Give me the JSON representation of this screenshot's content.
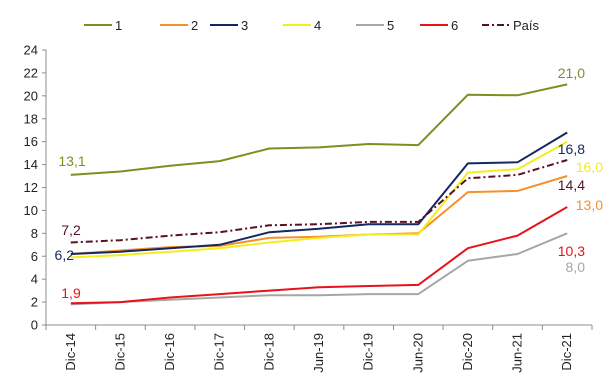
{
  "chart_data": {
    "type": "line",
    "categories": [
      "Dic-14",
      "Dic-15",
      "Dic-16",
      "Dic-17",
      "Dic-18",
      "Jun-19",
      "Dic-19",
      "Jun-20",
      "Dic-20",
      "Jun-21",
      "Dic-21"
    ],
    "ylim": [
      0,
      24
    ],
    "yticks": [
      "0",
      "2",
      "4",
      "6",
      "8",
      "10",
      "12",
      "14",
      "16",
      "18",
      "20",
      "22",
      "24"
    ],
    "grid": false,
    "legend_position": "top",
    "series": [
      {
        "name": "1",
        "color": "#7f8f1f",
        "dash": "solid",
        "values": [
          13.1,
          13.4,
          13.9,
          14.3,
          15.4,
          15.5,
          15.8,
          15.7,
          20.1,
          20.05,
          21.0
        ],
        "labels": [
          {
            "index": 0,
            "text": "13,1"
          },
          {
            "index": 10,
            "text": "21,0"
          }
        ]
      },
      {
        "name": "2",
        "color": "#f5902b",
        "dash": "solid",
        "values": [
          6.2,
          6.5,
          6.8,
          6.9,
          7.6,
          7.7,
          7.9,
          8.0,
          11.6,
          11.7,
          13.0
        ],
        "labels": [
          {
            "index": 10,
            "text": "13,0"
          }
        ]
      },
      {
        "name": "3",
        "color": "#14285f",
        "dash": "solid",
        "values": [
          6.2,
          6.4,
          6.7,
          7.0,
          8.1,
          8.4,
          8.8,
          8.8,
          14.1,
          14.2,
          16.8
        ],
        "labels": [
          {
            "index": 0,
            "text": "6,2"
          },
          {
            "index": 10,
            "text": "16,8"
          }
        ]
      },
      {
        "name": "4",
        "color": "#f2ee1c",
        "dash": "solid",
        "values": [
          5.9,
          6.1,
          6.4,
          6.7,
          7.2,
          7.6,
          7.9,
          7.9,
          13.3,
          13.6,
          16.0
        ],
        "labels": [
          {
            "index": 10,
            "text": "16,0"
          }
        ]
      },
      {
        "name": "5",
        "color": "#a6a6a6",
        "dash": "solid",
        "values": [
          1.8,
          2.0,
          2.2,
          2.4,
          2.6,
          2.6,
          2.7,
          2.7,
          5.6,
          6.2,
          8.0
        ],
        "labels": [
          {
            "index": 10,
            "text": "8,0"
          }
        ]
      },
      {
        "name": "6",
        "color": "#e8131a",
        "dash": "solid",
        "values": [
          1.9,
          2.0,
          2.4,
          2.7,
          3.0,
          3.3,
          3.4,
          3.5,
          6.7,
          7.8,
          10.3
        ],
        "labels": [
          {
            "index": 0,
            "text": "1,9"
          },
          {
            "index": 10,
            "text": "10,3"
          }
        ]
      },
      {
        "name": "País",
        "color": "#5a1028",
        "dash": "dashdot",
        "values": [
          7.2,
          7.4,
          7.8,
          8.1,
          8.7,
          8.8,
          9.0,
          9.0,
          12.8,
          13.1,
          14.4
        ],
        "labels": [
          {
            "index": 0,
            "text": "7,2"
          },
          {
            "index": 10,
            "text": "14,4"
          }
        ]
      }
    ]
  }
}
